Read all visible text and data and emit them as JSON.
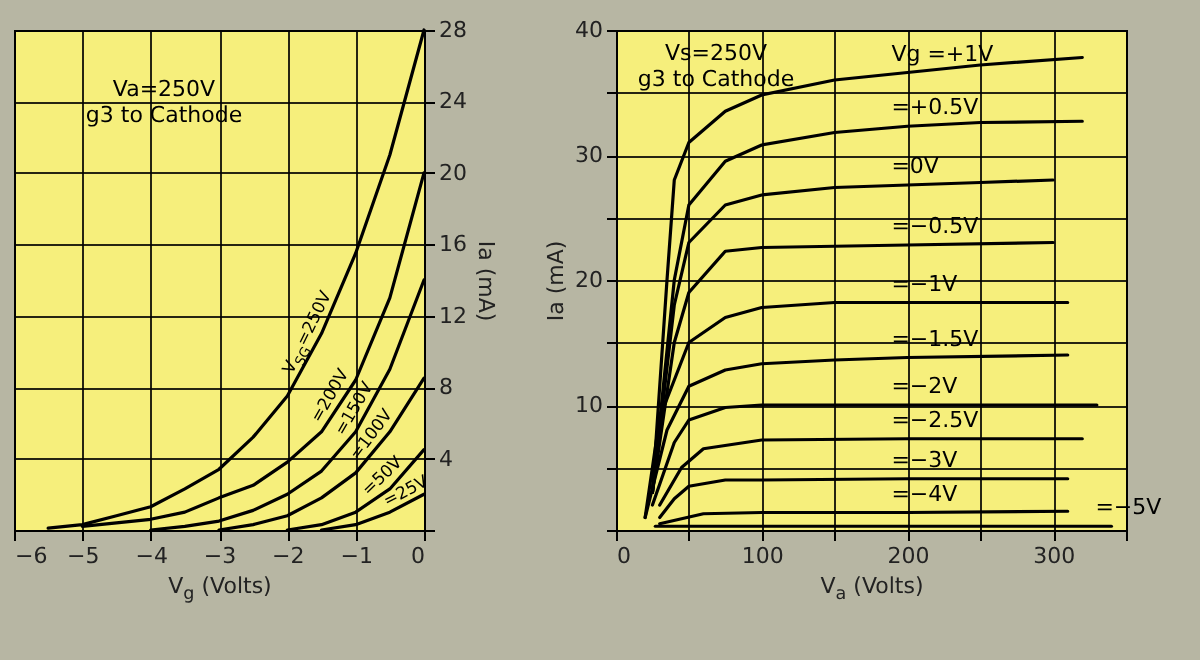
{
  "chart_data": [
    {
      "type": "line",
      "xlabel": "V$_{g}$  (Volts)",
      "ylabel": "Ia  (mA)",
      "annotations": [
        "Va=250V",
        "g3 to Cathode"
      ],
      "xlim": [
        -6,
        0
      ],
      "ylim": [
        0,
        28
      ],
      "xticks": [
        -6,
        -5,
        -4,
        -3,
        -2,
        -1,
        0
      ],
      "yticks": [
        {
          "value": 0,
          "label": null
        },
        4,
        8,
        12,
        16,
        20,
        24,
        28
      ],
      "grid": true,
      "legend": false,
      "marker": "none",
      "line_style": "solid",
      "series": [
        {
          "name": "V$_{SG}$=250V",
          "color": "#000000",
          "x": [
            -5.5,
            -5,
            -4.5,
            -4,
            -3.5,
            -3,
            -2.5,
            -2,
            -1.5,
            -1,
            -0.5,
            0
          ],
          "values": [
            0.1,
            0.3,
            0.8,
            1.3,
            2.3,
            3.4,
            5.2,
            7.5,
            11,
            15.5,
            21,
            28
          ]
        },
        {
          "name": "=200V",
          "color": "#000000",
          "x": [
            -5,
            -4.5,
            -4,
            -3.5,
            -3,
            -2.5,
            -2,
            -1.5,
            -1,
            -0.5,
            0
          ],
          "values": [
            0.2,
            0.4,
            0.6,
            1,
            1.8,
            2.5,
            3.8,
            5.5,
            8.4,
            13,
            20
          ]
        },
        {
          "name": "=150V",
          "color": "#000000",
          "x": [
            -4,
            -3.5,
            -3,
            -2.5,
            -2,
            -1.5,
            -1,
            -0.5,
            0
          ],
          "values": [
            0,
            0.2,
            0.5,
            1.1,
            2,
            3.3,
            5.5,
            9,
            14
          ]
        },
        {
          "name": "=100V",
          "color": "#000000",
          "x": [
            -3,
            -2.5,
            -2,
            -1.5,
            -1,
            -0.5,
            0
          ],
          "values": [
            0,
            0.3,
            0.8,
            1.8,
            3.2,
            5.5,
            8.5
          ]
        },
        {
          "name": "=50V",
          "color": "#000000",
          "x": [
            -2,
            -1.5,
            -1,
            -0.5,
            0
          ],
          "values": [
            0,
            0.3,
            1,
            2.3,
            4.5
          ]
        },
        {
          "name": "=25V",
          "color": "#000000",
          "x": [
            -1.5,
            -1,
            -0.5,
            0
          ],
          "values": [
            0,
            0.3,
            1,
            2
          ]
        }
      ]
    },
    {
      "type": "line",
      "xlabel": "V$_{a}$    (Volts)",
      "ylabel": "Ia  (mA)",
      "annotations": [
        "Vs=250V",
        "g3 to Cathode"
      ],
      "xlim": [
        0,
        350
      ],
      "ylim": [
        0,
        40
      ],
      "xticks": [
        0,
        {
          "value": 50,
          "label": null
        },
        100,
        {
          "value": 150,
          "label": null
        },
        200,
        {
          "value": 250,
          "label": null
        },
        300,
        {
          "value": 350,
          "label": null
        }
      ],
      "yticks": [
        {
          "value": 0,
          "label": null
        },
        {
          "value": 5,
          "label": null
        },
        10,
        {
          "value": 15,
          "label": null
        },
        20,
        {
          "value": 25,
          "label": null
        },
        30,
        {
          "value": 35,
          "label": null
        },
        40
      ],
      "grid": true,
      "legend": false,
      "marker": "none",
      "line_style": "solid",
      "series": [
        {
          "name": "Vg =+1V",
          "color": "#000000",
          "x": [
            25,
            35,
            40,
            50,
            75,
            100,
            150,
            200,
            250,
            320
          ],
          "values": [
            3,
            20,
            28,
            31,
            33.5,
            34.8,
            36,
            36.6,
            37.2,
            37.8
          ]
        },
        {
          "name": "=+0.5V",
          "color": "#000000",
          "x": [
            25,
            40,
            50,
            75,
            100,
            150,
            200,
            250,
            320
          ],
          "values": [
            3,
            20,
            26,
            29.5,
            30.8,
            31.8,
            32.3,
            32.6,
            32.7
          ]
        },
        {
          "name": "=0V",
          "color": "#000000",
          "x": [
            25,
            40,
            50,
            75,
            100,
            150,
            200,
            250,
            300
          ],
          "values": [
            3,
            18,
            23,
            26,
            26.8,
            27.4,
            27.6,
            27.8,
            28
          ]
        },
        {
          "name": "=−0.5V",
          "color": "#000000",
          "x": [
            25,
            40,
            50,
            75,
            100,
            150,
            200,
            300
          ],
          "values": [
            3,
            15,
            19,
            22.3,
            22.6,
            22.7,
            22.8,
            23
          ]
        },
        {
          "name": "=−1V",
          "color": "#000000",
          "x": [
            20,
            30,
            50,
            75,
            100,
            150,
            200,
            310
          ],
          "values": [
            1,
            9,
            15,
            17,
            17.8,
            18.2,
            18.2,
            18.2
          ]
        },
        {
          "name": "=−1.5V",
          "color": "#000000",
          "x": [
            20,
            35,
            50,
            75,
            100,
            150,
            200,
            310
          ],
          "values": [
            1,
            8,
            11.5,
            12.8,
            13.3,
            13.6,
            13.8,
            14
          ]
        },
        {
          "name": "=−2V",
          "color": "#000000",
          "x": [
            25,
            40,
            50,
            75,
            100,
            200,
            330
          ],
          "values": [
            2,
            7,
            8.8,
            9.8,
            10,
            10,
            10
          ]
        },
        {
          "name": "=−2.5V",
          "color": "#000000",
          "x": [
            30,
            45,
            60,
            100,
            200,
            320
          ],
          "values": [
            2,
            5,
            6.5,
            7.2,
            7.3,
            7.3
          ]
        },
        {
          "name": "=−3V",
          "color": "#000000",
          "x": [
            30,
            40,
            50,
            75,
            100,
            200,
            310
          ],
          "values": [
            1,
            2.5,
            3.5,
            4,
            4,
            4.1,
            4.1
          ]
        },
        {
          "name": "=−4V",
          "color": "#000000",
          "x": [
            30,
            60,
            100,
            200,
            310
          ],
          "values": [
            0.5,
            1.3,
            1.4,
            1.4,
            1.5
          ]
        },
        {
          "name": "=−5V",
          "color": "#000000",
          "x": [
            27,
            340
          ],
          "values": [
            0.3,
            0.3
          ]
        }
      ]
    }
  ]
}
